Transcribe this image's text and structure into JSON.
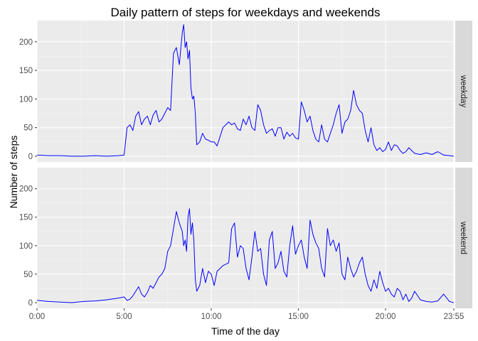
{
  "chart_data": {
    "type": "line",
    "title": "Daily pattern of steps for weekdays and weekends",
    "xlabel": "Time of the day",
    "ylabel": "Number of steps",
    "xlim": [
      0,
      1435
    ],
    "ylim": [
      0,
      230
    ],
    "x_ticks": [
      {
        "value": 0,
        "label": "0:00"
      },
      {
        "value": 300,
        "label": "5:00"
      },
      {
        "value": 600,
        "label": "10:00"
      },
      {
        "value": 900,
        "label": "15:00"
      },
      {
        "value": 1200,
        "label": "20:00"
      },
      {
        "value": 1435,
        "label": "23:55"
      }
    ],
    "y_ticks": [
      0,
      50,
      100,
      150,
      200
    ],
    "grid": true,
    "line_color": "#0000ff",
    "panels": [
      {
        "strip": "weekday",
        "x": [
          0,
          40,
          80,
          120,
          160,
          200,
          240,
          280,
          300,
          310,
          320,
          330,
          340,
          350,
          360,
          370,
          380,
          390,
          400,
          410,
          420,
          430,
          440,
          450,
          460,
          470,
          480,
          490,
          500,
          505,
          510,
          515,
          520,
          525,
          530,
          535,
          540,
          545,
          550,
          560,
          570,
          580,
          590,
          600,
          610,
          620,
          640,
          660,
          670,
          680,
          690,
          700,
          710,
          720,
          730,
          740,
          750,
          760,
          770,
          780,
          790,
          800,
          810,
          820,
          830,
          840,
          850,
          860,
          870,
          880,
          890,
          900,
          910,
          920,
          930,
          940,
          950,
          960,
          970,
          980,
          990,
          1000,
          1010,
          1020,
          1030,
          1040,
          1050,
          1060,
          1070,
          1080,
          1090,
          1100,
          1110,
          1120,
          1130,
          1140,
          1150,
          1160,
          1170,
          1180,
          1190,
          1200,
          1210,
          1220,
          1230,
          1240,
          1250,
          1260,
          1270,
          1280,
          1290,
          1300,
          1320,
          1340,
          1360,
          1380,
          1400,
          1420,
          1435
        ],
        "y": [
          2,
          1,
          1,
          0,
          0,
          1,
          0,
          1,
          2,
          50,
          55,
          45,
          70,
          78,
          55,
          65,
          70,
          55,
          72,
          80,
          60,
          65,
          75,
          85,
          80,
          180,
          190,
          160,
          215,
          230,
          190,
          200,
          170,
          185,
          120,
          100,
          105,
          75,
          20,
          25,
          40,
          30,
          28,
          25,
          25,
          18,
          50,
          60,
          55,
          58,
          48,
          45,
          65,
          55,
          70,
          50,
          45,
          90,
          80,
          55,
          40,
          45,
          48,
          35,
          50,
          50,
          30,
          42,
          35,
          40,
          32,
          30,
          95,
          80,
          60,
          70,
          45,
          30,
          25,
          55,
          30,
          25,
          40,
          55,
          75,
          90,
          40,
          60,
          65,
          80,
          115,
          90,
          80,
          75,
          45,
          25,
          50,
          20,
          10,
          15,
          8,
          12,
          25,
          10,
          20,
          18,
          10,
          5,
          8,
          15,
          10,
          5,
          3,
          6,
          3,
          8,
          2,
          1,
          0
        ]
      },
      {
        "strip": "weekend",
        "x": [
          0,
          40,
          80,
          120,
          160,
          200,
          240,
          280,
          300,
          310,
          320,
          330,
          340,
          350,
          360,
          370,
          380,
          390,
          400,
          410,
          420,
          430,
          440,
          450,
          460,
          470,
          480,
          490,
          500,
          505,
          510,
          515,
          520,
          525,
          530,
          535,
          540,
          545,
          550,
          560,
          570,
          580,
          590,
          600,
          610,
          620,
          640,
          660,
          670,
          680,
          690,
          700,
          710,
          720,
          730,
          740,
          750,
          760,
          770,
          780,
          790,
          800,
          810,
          820,
          830,
          840,
          850,
          860,
          870,
          880,
          890,
          900,
          910,
          920,
          930,
          940,
          950,
          960,
          970,
          980,
          990,
          1000,
          1010,
          1020,
          1030,
          1040,
          1050,
          1060,
          1070,
          1080,
          1090,
          1100,
          1110,
          1120,
          1130,
          1140,
          1150,
          1160,
          1170,
          1180,
          1190,
          1200,
          1210,
          1220,
          1230,
          1240,
          1250,
          1260,
          1270,
          1280,
          1290,
          1300,
          1320,
          1340,
          1360,
          1380,
          1400,
          1420,
          1435
        ],
        "y": [
          4,
          2,
          1,
          0,
          2,
          3,
          5,
          8,
          10,
          4,
          6,
          12,
          20,
          28,
          15,
          10,
          18,
          30,
          25,
          35,
          45,
          50,
          60,
          90,
          100,
          130,
          160,
          140,
          125,
          100,
          110,
          90,
          150,
          165,
          120,
          140,
          110,
          40,
          20,
          30,
          60,
          35,
          55,
          50,
          30,
          55,
          65,
          70,
          130,
          140,
          80,
          100,
          95,
          60,
          40,
          80,
          125,
          90,
          95,
          50,
          30,
          110,
          125,
          60,
          70,
          90,
          55,
          45,
          100,
          135,
          85,
          100,
          110,
          80,
          60,
          145,
          120,
          105,
          95,
          60,
          45,
          130,
          100,
          110,
          90,
          105,
          50,
          40,
          80,
          60,
          45,
          55,
          70,
          80,
          50,
          30,
          20,
          40,
          25,
          55,
          35,
          20,
          25,
          15,
          10,
          25,
          20,
          5,
          15,
          2,
          8,
          20,
          5,
          2,
          1,
          3,
          15,
          2,
          0
        ]
      }
    ]
  }
}
